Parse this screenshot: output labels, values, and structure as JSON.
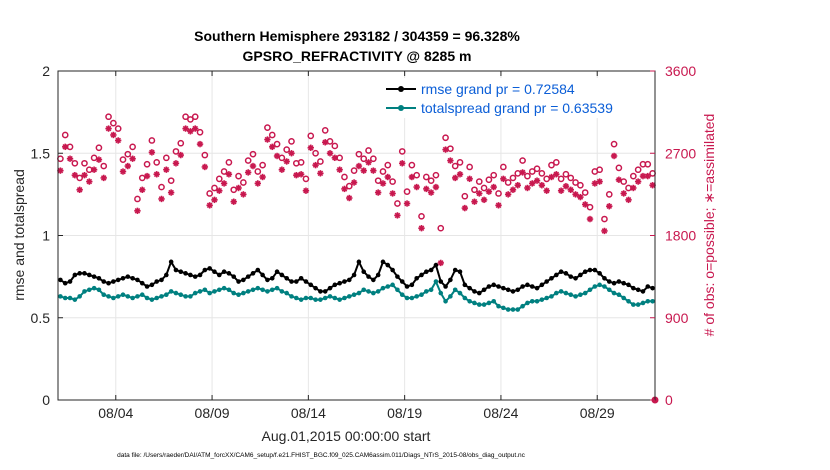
{
  "chart_data": {
    "type": "line",
    "title": "Southern Hemisphere 293182 / 304359 = 96.328%",
    "subtitle": "GPSRO_REFRACTIVITY @ 8285 m",
    "xlabel": "Aug.01,2015 00:00:00 start",
    "ylabel": "rmse and totalspread",
    "ylabel_right": "# of obs: o=possible; ∗=assimilated",
    "footnote": "data file: /Users/raeder/DAI/ATM_forcXX/CAM6_setup/f.e21.FHIST_BGC.f09_025.CAM6assim.011/Diags_NTrS_2015-08/obs_diag_output.nc",
    "xlim": [
      0,
      31
    ],
    "ylim": [
      0,
      2
    ],
    "ylim_right": [
      0,
      3600
    ],
    "grid": true,
    "legend_position": "top-right",
    "x_ticks": [
      {
        "value": 3.0,
        "label": "08/04"
      },
      {
        "value": 8.0,
        "label": "08/09"
      },
      {
        "value": 13.0,
        "label": "08/14"
      },
      {
        "value": 18.0,
        "label": "08/19"
      },
      {
        "value": 23.0,
        "label": "08/24"
      },
      {
        "value": 28.0,
        "label": "08/29"
      }
    ],
    "y_ticks": [
      "0",
      "0.5",
      "1",
      "1.5",
      "2"
    ],
    "y_ticks_right": [
      "0",
      "900",
      "1800",
      "2700",
      "3600"
    ],
    "rmse_series": {
      "name": "rmse grand pr = 0.72584",
      "color": "#000000",
      "x": [
        0.125,
        0.375,
        0.625,
        0.875,
        1.125,
        1.375,
        1.625,
        1.875,
        2.125,
        2.375,
        2.625,
        2.875,
        3.125,
        3.375,
        3.625,
        3.875,
        4.125,
        4.375,
        4.625,
        4.875,
        5.125,
        5.375,
        5.625,
        5.875,
        6.125,
        6.375,
        6.625,
        6.875,
        7.125,
        7.375,
        7.625,
        7.875,
        8.125,
        8.375,
        8.625,
        8.875,
        9.125,
        9.375,
        9.625,
        9.875,
        10.125,
        10.375,
        10.625,
        10.875,
        11.125,
        11.375,
        11.625,
        11.875,
        12.125,
        12.375,
        12.625,
        12.875,
        13.125,
        13.375,
        13.625,
        13.875,
        14.125,
        14.375,
        14.625,
        14.875,
        15.125,
        15.375,
        15.625,
        15.875,
        16.125,
        16.375,
        16.625,
        16.875,
        17.125,
        17.375,
        17.625,
        17.875,
        18.125,
        18.375,
        18.625,
        18.875,
        19.125,
        19.375,
        19.625,
        19.875,
        20.125,
        20.375,
        20.625,
        20.875,
        21.125,
        21.375,
        21.625,
        21.875,
        22.125,
        22.375,
        22.625,
        22.875,
        23.125,
        23.375,
        23.625,
        23.875,
        24.125,
        24.375,
        24.625,
        24.875,
        25.125,
        25.375,
        25.625,
        25.875,
        26.125,
        26.375,
        26.625,
        26.875,
        27.125,
        27.375,
        27.625,
        27.875,
        28.125,
        28.375,
        28.625,
        28.875,
        29.125,
        29.375,
        29.625,
        29.875,
        30.125,
        30.375,
        30.625,
        30.875
      ],
      "y": [
        0.73,
        0.71,
        0.72,
        0.76,
        0.77,
        0.77,
        0.76,
        0.75,
        0.74,
        0.72,
        0.71,
        0.72,
        0.73,
        0.74,
        0.75,
        0.74,
        0.73,
        0.71,
        0.69,
        0.7,
        0.72,
        0.73,
        0.76,
        0.84,
        0.79,
        0.78,
        0.77,
        0.76,
        0.75,
        0.76,
        0.79,
        0.8,
        0.78,
        0.76,
        0.78,
        0.77,
        0.75,
        0.72,
        0.73,
        0.75,
        0.77,
        0.79,
        0.76,
        0.73,
        0.74,
        0.78,
        0.76,
        0.74,
        0.72,
        0.72,
        0.74,
        0.72,
        0.7,
        0.68,
        0.66,
        0.66,
        0.68,
        0.7,
        0.71,
        0.72,
        0.73,
        0.76,
        0.84,
        0.78,
        0.75,
        0.73,
        0.76,
        0.84,
        0.82,
        0.79,
        0.75,
        0.72,
        0.69,
        0.7,
        0.74,
        0.76,
        0.78,
        0.79,
        0.82,
        0.72,
        0.69,
        0.73,
        0.79,
        0.78,
        0.7,
        0.68,
        0.66,
        0.65,
        0.67,
        0.69,
        0.7,
        0.69,
        0.68,
        0.67,
        0.66,
        0.67,
        0.69,
        0.7,
        0.69,
        0.68,
        0.7,
        0.72,
        0.74,
        0.76,
        0.78,
        0.77,
        0.75,
        0.74,
        0.76,
        0.78,
        0.79,
        0.79,
        0.77,
        0.74,
        0.72,
        0.71,
        0.72,
        0.71,
        0.7,
        0.68,
        0.67,
        0.66,
        0.69,
        0.68
      ]
    },
    "spread_series": {
      "name": "totalspread grand pr = 0.63539",
      "color": "#008080",
      "x": [
        0.125,
        0.375,
        0.625,
        0.875,
        1.125,
        1.375,
        1.625,
        1.875,
        2.125,
        2.375,
        2.625,
        2.875,
        3.125,
        3.375,
        3.625,
        3.875,
        4.125,
        4.375,
        4.625,
        4.875,
        5.125,
        5.375,
        5.625,
        5.875,
        6.125,
        6.375,
        6.625,
        6.875,
        7.125,
        7.375,
        7.625,
        7.875,
        8.125,
        8.375,
        8.625,
        8.875,
        9.125,
        9.375,
        9.625,
        9.875,
        10.125,
        10.375,
        10.625,
        10.875,
        11.125,
        11.375,
        11.625,
        11.875,
        12.125,
        12.375,
        12.625,
        12.875,
        13.125,
        13.375,
        13.625,
        13.875,
        14.125,
        14.375,
        14.625,
        14.875,
        15.125,
        15.375,
        15.625,
        15.875,
        16.125,
        16.375,
        16.625,
        16.875,
        17.125,
        17.375,
        17.625,
        17.875,
        18.125,
        18.375,
        18.625,
        18.875,
        19.125,
        19.375,
        19.625,
        19.875,
        20.125,
        20.375,
        20.625,
        20.875,
        21.125,
        21.375,
        21.625,
        21.875,
        22.125,
        22.375,
        22.625,
        22.875,
        23.125,
        23.375,
        23.625,
        23.875,
        24.125,
        24.375,
        24.625,
        24.875,
        25.125,
        25.375,
        25.625,
        25.875,
        26.125,
        26.375,
        26.625,
        26.875,
        27.125,
        27.375,
        27.625,
        27.875,
        28.125,
        28.375,
        28.625,
        28.875,
        29.125,
        29.375,
        29.625,
        29.875,
        30.125,
        30.375,
        30.625,
        30.875
      ],
      "y": [
        0.63,
        0.62,
        0.62,
        0.61,
        0.63,
        0.66,
        0.67,
        0.68,
        0.67,
        0.64,
        0.63,
        0.62,
        0.63,
        0.64,
        0.63,
        0.62,
        0.63,
        0.64,
        0.62,
        0.61,
        0.62,
        0.63,
        0.64,
        0.66,
        0.65,
        0.64,
        0.63,
        0.63,
        0.65,
        0.66,
        0.67,
        0.65,
        0.66,
        0.67,
        0.68,
        0.67,
        0.65,
        0.64,
        0.65,
        0.66,
        0.67,
        0.68,
        0.67,
        0.66,
        0.67,
        0.68,
        0.66,
        0.65,
        0.63,
        0.62,
        0.61,
        0.62,
        0.62,
        0.61,
        0.61,
        0.62,
        0.63,
        0.62,
        0.61,
        0.62,
        0.63,
        0.64,
        0.65,
        0.67,
        0.66,
        0.65,
        0.66,
        0.68,
        0.69,
        0.7,
        0.67,
        0.64,
        0.62,
        0.62,
        0.63,
        0.64,
        0.66,
        0.67,
        0.72,
        0.65,
        0.6,
        0.63,
        0.67,
        0.65,
        0.62,
        0.6,
        0.59,
        0.58,
        0.58,
        0.59,
        0.6,
        0.57,
        0.56,
        0.55,
        0.55,
        0.55,
        0.57,
        0.59,
        0.6,
        0.6,
        0.61,
        0.62,
        0.63,
        0.65,
        0.66,
        0.65,
        0.64,
        0.63,
        0.64,
        0.65,
        0.67,
        0.69,
        0.7,
        0.69,
        0.67,
        0.65,
        0.64,
        0.62,
        0.6,
        0.58,
        0.58,
        0.59,
        0.6,
        0.6
      ]
    },
    "obs_possible": {
      "name": "possible",
      "color": "#c8184f",
      "x": [
        0.125,
        0.375,
        0.625,
        0.875,
        1.125,
        1.375,
        1.625,
        1.875,
        2.125,
        2.375,
        2.625,
        2.875,
        3.125,
        3.375,
        3.625,
        3.875,
        4.125,
        4.375,
        4.625,
        4.875,
        5.125,
        5.375,
        5.625,
        5.875,
        6.125,
        6.375,
        6.625,
        6.875,
        7.125,
        7.375,
        7.625,
        7.875,
        8.125,
        8.375,
        8.625,
        8.875,
        9.125,
        9.375,
        9.625,
        9.875,
        10.125,
        10.375,
        10.625,
        10.875,
        11.125,
        11.375,
        11.625,
        11.875,
        12.125,
        12.375,
        12.625,
        12.875,
        13.125,
        13.375,
        13.625,
        13.875,
        14.125,
        14.375,
        14.625,
        14.875,
        15.125,
        15.375,
        15.625,
        15.875,
        16.125,
        16.375,
        16.625,
        16.875,
        17.125,
        17.375,
        17.625,
        17.875,
        18.125,
        18.375,
        18.625,
        18.875,
        19.125,
        19.375,
        19.625,
        19.875,
        20.125,
        20.375,
        20.625,
        20.875,
        21.125,
        21.375,
        21.625,
        21.875,
        22.125,
        22.375,
        22.625,
        22.875,
        23.125,
        23.375,
        23.625,
        23.875,
        24.125,
        24.375,
        24.625,
        24.875,
        25.125,
        25.375,
        25.625,
        25.875,
        26.125,
        26.375,
        26.625,
        26.875,
        27.125,
        27.375,
        27.625,
        27.875,
        28.125,
        28.375,
        28.625,
        28.875,
        29.125,
        29.375,
        29.625,
        29.875,
        30.125,
        30.375,
        30.625,
        30.875
      ],
      "y": [
        2640,
        2900,
        2770,
        2590,
        2430,
        2590,
        2520,
        2650,
        2760,
        2560,
        3100,
        3030,
        2970,
        2630,
        2690,
        2770,
        2200,
        2430,
        2580,
        2840,
        2600,
        2330,
        2650,
        2400,
        2720,
        2810,
        3100,
        3070,
        3100,
        2930,
        2680,
        2260,
        2320,
        2420,
        2500,
        2600,
        2300,
        2450,
        2380,
        2620,
        2690,
        2500,
        2570,
        2980,
        2900,
        2800,
        2650,
        2740,
        2830,
        2590,
        2600,
        2420,
        2890,
        2700,
        2610,
        2950,
        2830,
        2780,
        2650,
        2440,
        2340,
        2510,
        2690,
        2640,
        2730,
        2640,
        2400,
        2500,
        2570,
        2390,
        2150,
        2720,
        2280,
        2570,
        2460,
        2010,
        2440,
        2400,
        2460,
        1880,
        2870,
        2750,
        2560,
        2600,
        2230,
        2550,
        2300,
        2390,
        2320,
        2410,
        2460,
        2260,
        2550,
        2380,
        2430,
        2480,
        2620,
        2450,
        2500,
        2530,
        2480,
        2420,
        2570,
        2600,
        2420,
        2470,
        2430,
        2380,
        2350,
        2270,
        2110,
        2500,
        2520,
        1980,
        2250,
        2800,
        2540,
        2390,
        2320,
        2450,
        2520,
        2580,
        2580,
        2480
      ]
    },
    "obs_assimilated": {
      "name": "assimilated",
      "color": "#c8184f",
      "x": [
        0.125,
        0.375,
        0.625,
        0.875,
        1.125,
        1.375,
        1.625,
        1.875,
        2.125,
        2.375,
        2.625,
        2.875,
        3.125,
        3.375,
        3.625,
        3.875,
        4.125,
        4.375,
        4.625,
        4.875,
        5.125,
        5.375,
        5.625,
        5.875,
        6.125,
        6.375,
        6.625,
        6.875,
        7.125,
        7.375,
        7.625,
        7.875,
        8.125,
        8.375,
        8.625,
        8.875,
        9.125,
        9.375,
        9.625,
        9.875,
        10.125,
        10.375,
        10.625,
        10.875,
        11.125,
        11.375,
        11.625,
        11.875,
        12.125,
        12.375,
        12.625,
        12.875,
        13.125,
        13.375,
        13.625,
        13.875,
        14.125,
        14.375,
        14.625,
        14.875,
        15.125,
        15.375,
        15.625,
        15.875,
        16.125,
        16.375,
        16.625,
        16.875,
        17.125,
        17.375,
        17.625,
        17.875,
        18.125,
        18.375,
        18.625,
        18.875,
        19.125,
        19.375,
        19.625,
        19.875,
        20.125,
        20.375,
        20.625,
        20.875,
        21.125,
        21.375,
        21.625,
        21.875,
        22.125,
        22.375,
        22.625,
        22.875,
        23.125,
        23.375,
        23.625,
        23.875,
        24.125,
        24.375,
        24.625,
        24.875,
        25.125,
        25.375,
        25.625,
        25.875,
        26.125,
        26.375,
        26.625,
        26.875,
        27.125,
        27.375,
        27.625,
        27.875,
        28.125,
        28.375,
        28.625,
        28.875,
        29.125,
        29.375,
        29.625,
        29.875,
        30.125,
        30.375,
        30.625,
        30.875
      ],
      "y": [
        2510,
        2770,
        2640,
        2460,
        2300,
        2460,
        2390,
        2520,
        2630,
        2430,
        2970,
        2900,
        2840,
        2500,
        2560,
        2640,
        2070,
        2300,
        2450,
        2710,
        2470,
        2200,
        2520,
        2270,
        2590,
        2680,
        2970,
        2940,
        2970,
        2800,
        2550,
        2130,
        2190,
        2290,
        2370,
        2470,
        2170,
        2320,
        2250,
        2490,
        2560,
        2370,
        2440,
        2850,
        2770,
        2670,
        2520,
        2610,
        2700,
        2460,
        2470,
        2290,
        2760,
        2570,
        2480,
        2820,
        2700,
        2650,
        2520,
        2310,
        2210,
        2380,
        2560,
        2510,
        2600,
        2510,
        2270,
        2370,
        2440,
        2260,
        2020,
        2590,
        2150,
        2440,
        2330,
        1880,
        2310,
        2270,
        2330,
        1500,
        2740,
        2620,
        2430,
        2470,
        2100,
        2420,
        2170,
        2260,
        2190,
        2280,
        2330,
        2130,
        2420,
        2250,
        2300,
        2350,
        2490,
        2320,
        2370,
        2400,
        2350,
        2290,
        2440,
        2470,
        2290,
        2340,
        2300,
        2250,
        2220,
        2140,
        1980,
        2370,
        2390,
        1850,
        2120,
        2670,
        2410,
        2260,
        2190,
        2320,
        2390,
        2450,
        2450,
        2350
      ]
    }
  }
}
